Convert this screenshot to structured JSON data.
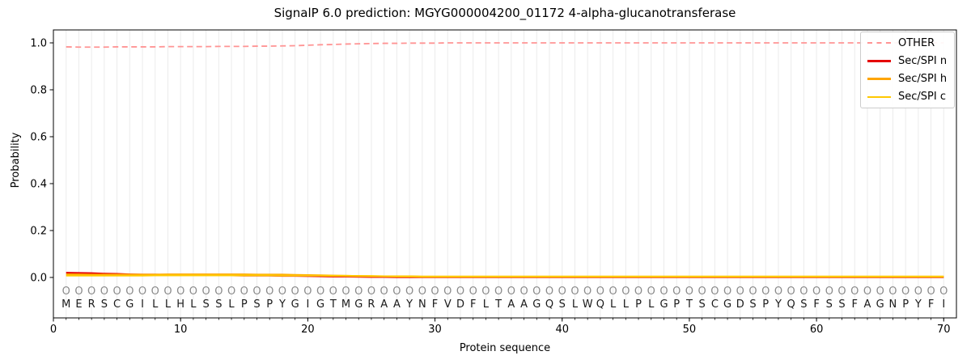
{
  "title": "SignalP 6.0 prediction: MGYG000004200_01172 4-alpha-glucanotransferase",
  "axes": {
    "x_label": "Protein sequence",
    "y_label": "Probability",
    "x_ticks": [
      0,
      10,
      20,
      30,
      40,
      50,
      60,
      70
    ],
    "y_ticks": [
      "0.0",
      "0.2",
      "0.4",
      "0.6",
      "0.8",
      "1.0"
    ]
  },
  "legend": [
    {
      "label": "OTHER",
      "color": "#ff9494",
      "dashed": true
    },
    {
      "label": "Sec/SPI n",
      "color": "#e50000",
      "dashed": false
    },
    {
      "label": "Sec/SPI h",
      "color": "#ffa500",
      "dashed": false
    },
    {
      "label": "Sec/SPI c",
      "color": "#ffc800",
      "dashed": false
    }
  ],
  "sequence": "MERSCGILLHLSSLPSPYGIGTMGRAAYNFVDFLTAAGQSLWQLLPLGPTSCGDSPYQSFSSFAGNPYFI",
  "predicted_labels": "OOOOOOOOOOOOOOOOOOOOOOOOOOOOOOOOOOOOOOOOOOOOOOOOOOOOOOOOOOOOOOOOOOOOOO",
  "chart_data": {
    "type": "line",
    "title": "SignalP 6.0 prediction: MGYG000004200_01172 4-alpha-glucanotransferase",
    "xlabel": "Protein sequence",
    "ylabel": "Probability",
    "xlim": [
      0,
      71
    ],
    "ylim": [
      -0.17,
      1.06
    ],
    "grid": "vertical line at every residue position",
    "legend_position": "upper right",
    "x": [
      1,
      2,
      3,
      4,
      5,
      6,
      7,
      8,
      9,
      10,
      11,
      12,
      13,
      14,
      15,
      16,
      17,
      18,
      19,
      20,
      21,
      22,
      23,
      24,
      25,
      26,
      27,
      28,
      29,
      30,
      31,
      32,
      33,
      34,
      35,
      36,
      37,
      38,
      39,
      40,
      41,
      42,
      43,
      44,
      45,
      46,
      47,
      48,
      49,
      50,
      51,
      52,
      53,
      54,
      55,
      56,
      57,
      58,
      59,
      60,
      61,
      62,
      63,
      64,
      65,
      66,
      67,
      68,
      69,
      70
    ],
    "series": [
      {
        "name": "OTHER",
        "color": "#ff9494",
        "style": "dashed",
        "values": [
          0.983,
          0.982,
          0.982,
          0.982,
          0.983,
          0.983,
          0.983,
          0.983,
          0.984,
          0.984,
          0.984,
          0.984,
          0.985,
          0.985,
          0.985,
          0.986,
          0.986,
          0.987,
          0.988,
          0.99,
          0.992,
          0.993,
          0.995,
          0.996,
          0.997,
          0.998,
          0.998,
          0.999,
          0.999,
          0.999,
          1.0,
          1.0,
          1.0,
          1.0,
          1.0,
          1.0,
          1.0,
          1.0,
          1.0,
          1.0,
          1.0,
          1.0,
          1.0,
          1.0,
          1.0,
          1.0,
          1.0,
          1.0,
          1.0,
          1.0,
          1.0,
          1.0,
          1.0,
          1.0,
          1.0,
          1.0,
          1.0,
          1.0,
          1.0,
          1.0,
          1.0,
          1.0,
          1.0,
          1.0,
          1.0,
          1.0,
          1.0,
          1.0,
          1.0,
          1.0
        ]
      },
      {
        "name": "Sec/SPI n",
        "color": "#e50000",
        "style": "solid",
        "values": [
          0.02,
          0.019,
          0.018,
          0.016,
          0.015,
          0.013,
          0.012,
          0.012,
          0.011,
          0.01,
          0.01,
          0.009,
          0.009,
          0.009,
          0.008,
          0.008,
          0.008,
          0.007,
          0.007,
          0.006,
          0.005,
          0.004,
          0.004,
          0.003,
          0.002,
          0.002,
          0.001,
          0.001,
          0.001,
          0.001,
          0.001,
          0.001,
          0.001,
          0.001,
          0.001,
          0.001,
          0.001,
          0.001,
          0.001,
          0.001,
          0.001,
          0.001,
          0.001,
          0.001,
          0.001,
          0.001,
          0.001,
          0.001,
          0.001,
          0.001,
          0.001,
          0.001,
          0.001,
          0.001,
          0.001,
          0.001,
          0.001,
          0.001,
          0.001,
          0.001,
          0.001,
          0.001,
          0.001,
          0.001,
          0.001,
          0.001,
          0.001,
          0.001,
          0.001,
          0.001
        ]
      },
      {
        "name": "Sec/SPI h",
        "color": "#ffa500",
        "style": "solid",
        "values": [
          0.013,
          0.013,
          0.012,
          0.012,
          0.012,
          0.012,
          0.012,
          0.012,
          0.013,
          0.013,
          0.013,
          0.013,
          0.013,
          0.013,
          0.013,
          0.012,
          0.012,
          0.012,
          0.011,
          0.01,
          0.009,
          0.008,
          0.007,
          0.006,
          0.005,
          0.005,
          0.004,
          0.004,
          0.003,
          0.003,
          0.003,
          0.003,
          0.003,
          0.003,
          0.003,
          0.003,
          0.003,
          0.003,
          0.003,
          0.003,
          0.003,
          0.003,
          0.003,
          0.003,
          0.003,
          0.003,
          0.003,
          0.003,
          0.003,
          0.003,
          0.003,
          0.003,
          0.003,
          0.003,
          0.003,
          0.003,
          0.003,
          0.003,
          0.003,
          0.003,
          0.003,
          0.003,
          0.003,
          0.003,
          0.003,
          0.003,
          0.003,
          0.003,
          0.003,
          0.003
        ]
      },
      {
        "name": "Sec/SPI c",
        "color": "#ffc800",
        "style": "solid",
        "values": [
          0.008,
          0.008,
          0.008,
          0.008,
          0.008,
          0.008,
          0.008,
          0.009,
          0.009,
          0.009,
          0.009,
          0.009,
          0.009,
          0.009,
          0.009,
          0.009,
          0.009,
          0.008,
          0.008,
          0.008,
          0.008,
          0.007,
          0.007,
          0.006,
          0.006,
          0.005,
          0.005,
          0.005,
          0.004,
          0.004,
          0.004,
          0.004,
          0.004,
          0.004,
          0.004,
          0.004,
          0.004,
          0.004,
          0.004,
          0.004,
          0.004,
          0.004,
          0.004,
          0.004,
          0.004,
          0.004,
          0.004,
          0.004,
          0.004,
          0.004,
          0.004,
          0.004,
          0.004,
          0.004,
          0.004,
          0.004,
          0.004,
          0.004,
          0.004,
          0.004,
          0.004,
          0.004,
          0.004,
          0.004,
          0.004,
          0.004,
          0.004,
          0.004,
          0.004,
          0.004
        ]
      }
    ]
  }
}
